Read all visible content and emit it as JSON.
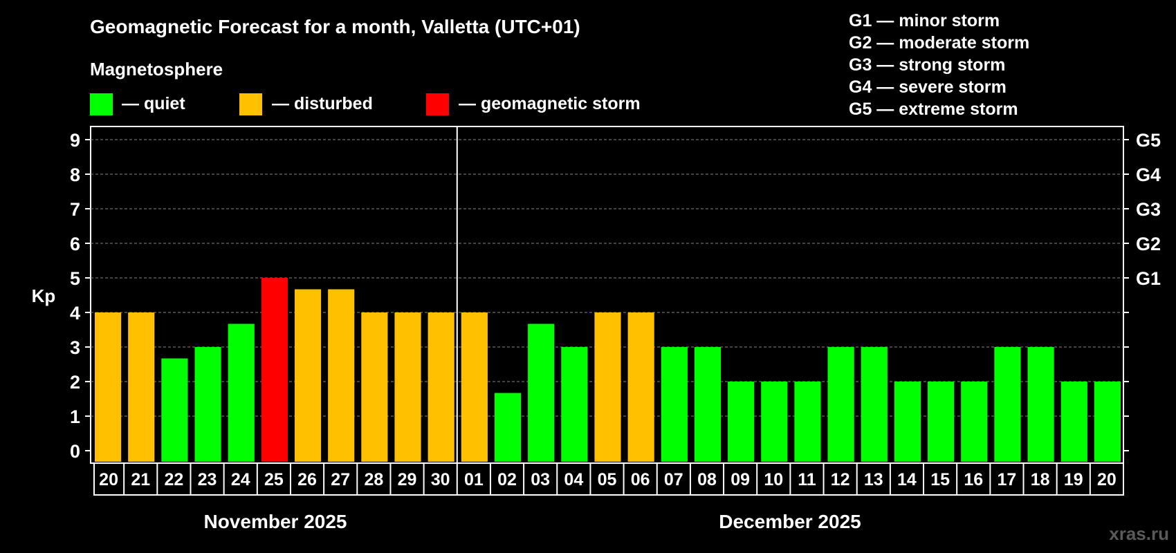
{
  "chart_data": {
    "type": "bar",
    "title": "Geomagnetic Forecast for a month, Valletta (UTC+01)",
    "ylabel": "Kp",
    "ylim": [
      0,
      9
    ],
    "yticks": [
      "0",
      "1",
      "2",
      "3",
      "4",
      "5",
      "6",
      "7",
      "8",
      "9"
    ],
    "g_scale": [
      {
        "kp": 5,
        "label": "G1"
      },
      {
        "kp": 6,
        "label": "G2"
      },
      {
        "kp": 7,
        "label": "G3"
      },
      {
        "kp": 8,
        "label": "G4"
      },
      {
        "kp": 9,
        "label": "G5"
      }
    ],
    "g_legend": [
      "G1 — minor storm",
      "G2 — moderate storm",
      "G3 — strong storm",
      "G4 — severe storm",
      "G5 — extreme storm"
    ],
    "legend_title": "Magnetosphere",
    "legend": [
      {
        "label": "— quiet",
        "color": "#00ff00"
      },
      {
        "label": "— disturbed",
        "color": "#ffc000"
      },
      {
        "label": "— geomagnetic storm",
        "color": "#ff0000"
      }
    ],
    "categories": [
      "20",
      "21",
      "22",
      "23",
      "24",
      "25",
      "26",
      "27",
      "28",
      "29",
      "30",
      "01",
      "02",
      "03",
      "04",
      "05",
      "06",
      "07",
      "08",
      "09",
      "10",
      "11",
      "12",
      "13",
      "14",
      "15",
      "16",
      "17",
      "18",
      "19",
      "20"
    ],
    "values": [
      4,
      4,
      2.67,
      3,
      3.67,
      5,
      4.67,
      4.67,
      4,
      4,
      4,
      4,
      1.67,
      3.67,
      3,
      4,
      4,
      3,
      3,
      2,
      2,
      2,
      3,
      3,
      2,
      2,
      2,
      3,
      3,
      2,
      2
    ],
    "levels": [
      "disturbed",
      "disturbed",
      "quiet",
      "quiet",
      "quiet",
      "storm",
      "disturbed",
      "disturbed",
      "disturbed",
      "disturbed",
      "disturbed",
      "disturbed",
      "quiet",
      "quiet",
      "quiet",
      "disturbed",
      "disturbed",
      "quiet",
      "quiet",
      "quiet",
      "quiet",
      "quiet",
      "quiet",
      "quiet",
      "quiet",
      "quiet",
      "quiet",
      "quiet",
      "quiet",
      "quiet",
      "quiet"
    ],
    "level_colors": {
      "quiet": "#00ff00",
      "disturbed": "#ffc000",
      "storm": "#ff0000"
    },
    "months": [
      {
        "label": "November 2025",
        "count": 11
      },
      {
        "label": "December 2025",
        "count": 20
      }
    ],
    "grid": true
  },
  "watermark": "xras.ru"
}
